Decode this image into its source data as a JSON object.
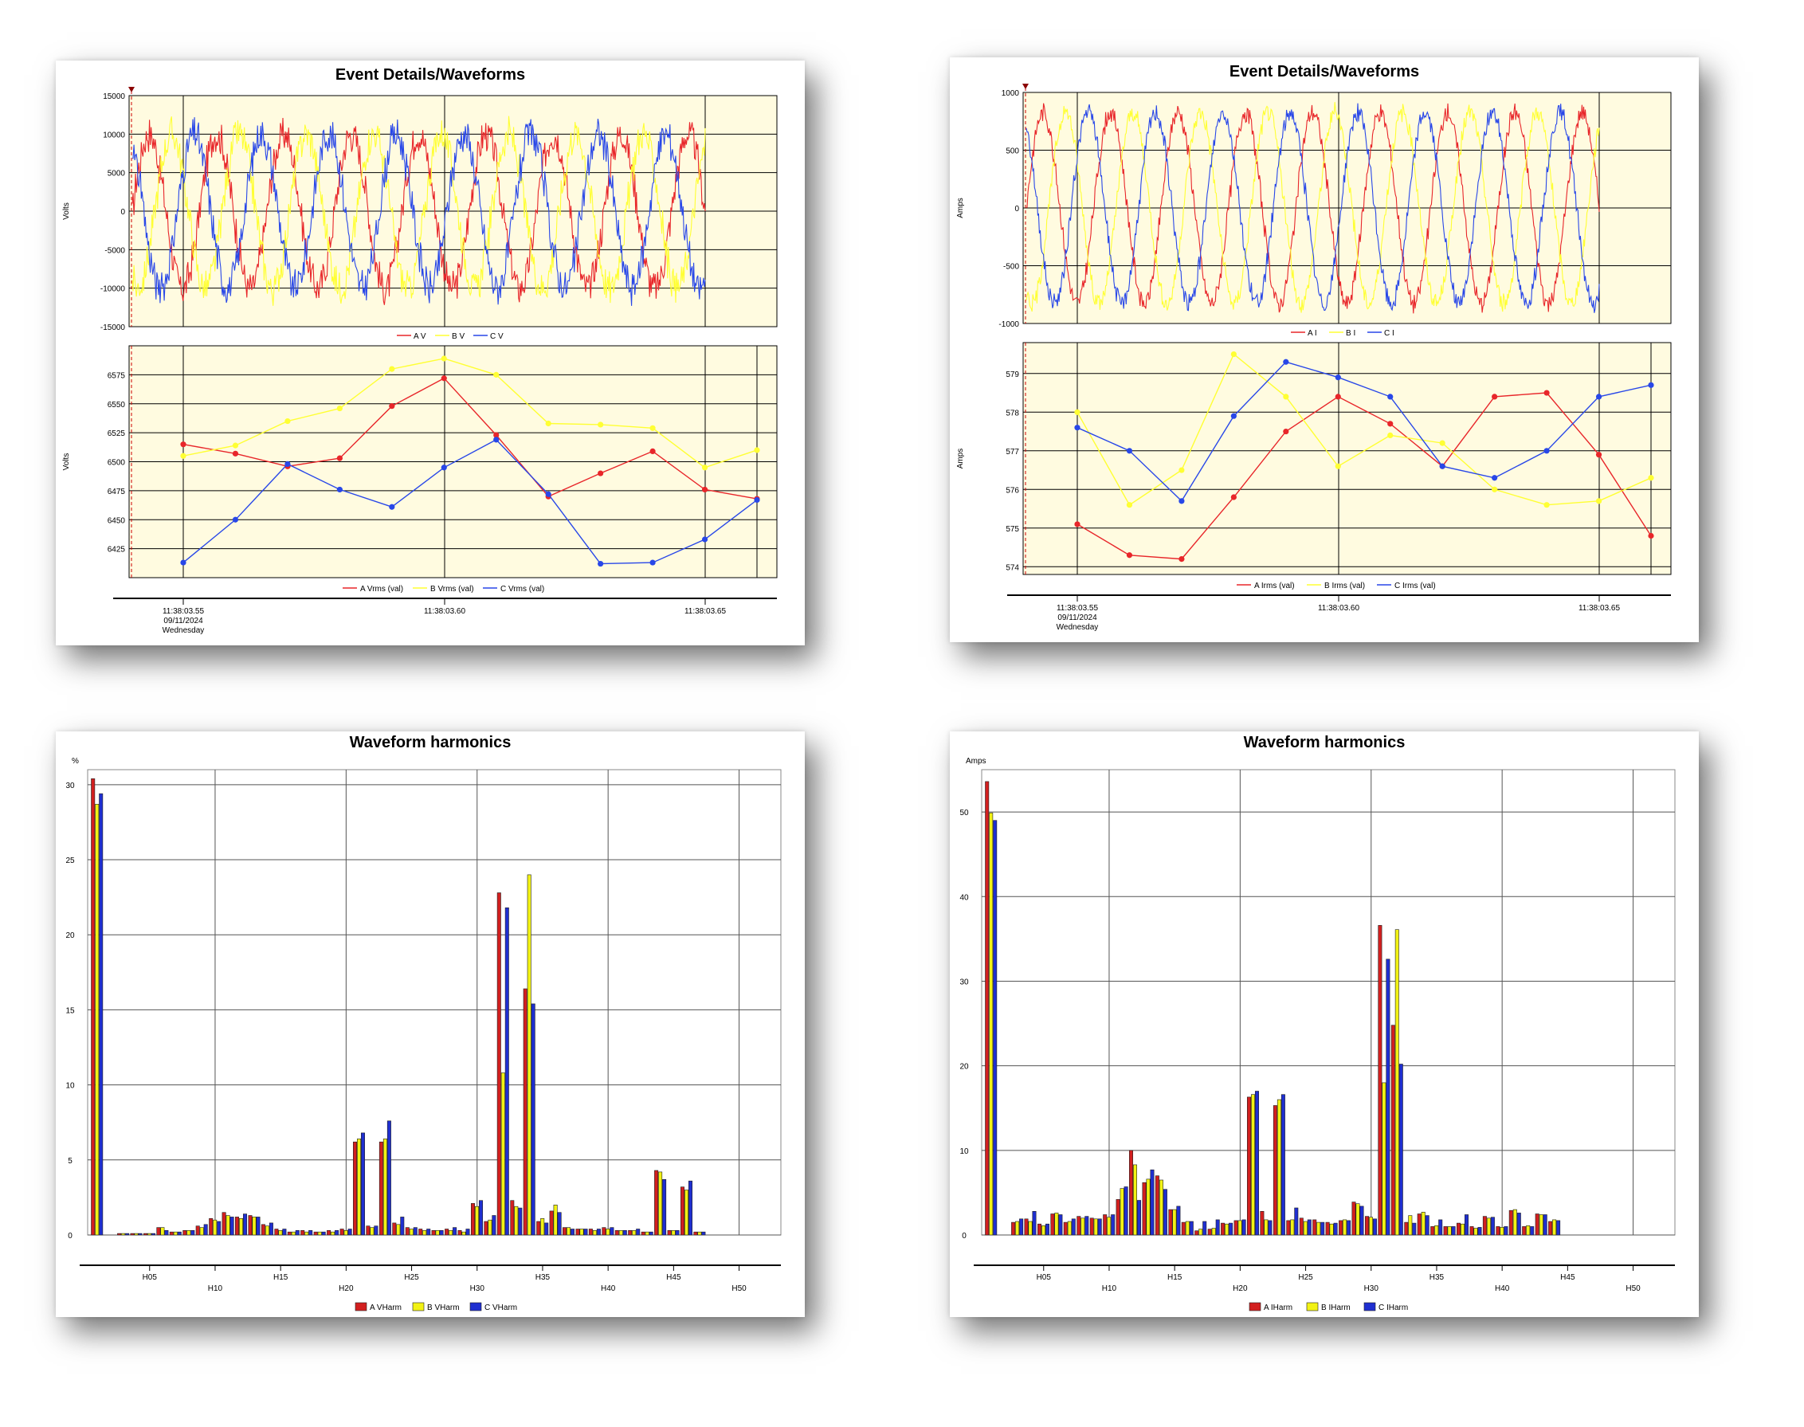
{
  "chart_data": [
    {
      "panel": "voltage",
      "type": "line",
      "title": "Event Details/Waveforms",
      "waveform": {
        "ylabel": "Volts",
        "ylim": [
          -15000,
          15000
        ],
        "yticks": [
          "15000",
          "10000",
          "5000",
          "0",
          "-5000",
          "-10000",
          "-15000"
        ],
        "amplitude": 10000,
        "noise": 2500,
        "cycles": 8.5,
        "legend": [
          "A V",
          "B V",
          "C V"
        ]
      },
      "rms": {
        "ylabel": "Volts",
        "ylim": [
          6400,
          6600
        ],
        "yticks": [
          "6575",
          "6550",
          "6525",
          "6500",
          "6475",
          "6450",
          "6425"
        ],
        "legend": [
          "A Vrms (val)",
          "B Vrms (val)",
          "C Vrms (val)"
        ],
        "series": [
          {
            "values": [
              6515,
              6507,
              6496,
              6503,
              6548,
              6572,
              6523,
              6470,
              6490,
              6509,
              6476,
              6468
            ]
          },
          {
            "values": [
              6505,
              6514,
              6535,
              6546,
              6580,
              6589,
              6575,
              6533,
              6532,
              6529,
              6495,
              6510
            ]
          },
          {
            "values": [
              6413,
              6450,
              6498,
              6476,
              6461,
              6495,
              6519,
              6472,
              6412,
              6413,
              6433,
              6467
            ]
          }
        ]
      },
      "time_labels": [
        {
          "lines": [
            "11:38:03.55",
            "09/11/2024",
            "Wednesday"
          ]
        },
        {
          "lines": [
            "11:38:03.60"
          ]
        },
        {
          "lines": [
            "11:38:03.65"
          ]
        }
      ],
      "colors": [
        "#e8262a",
        "#ffff33",
        "#2847e8"
      ]
    },
    {
      "panel": "current",
      "type": "line",
      "title": "Event Details/Waveforms",
      "waveform": {
        "ylabel": "Amps",
        "ylim": [
          -1000,
          1000
        ],
        "yticks": [
          "1000",
          "500",
          "0",
          "-500",
          "-1000"
        ],
        "amplitude": 830,
        "noise": 90,
        "cycles": 8.5,
        "legend": [
          "A I",
          "B I",
          "C I"
        ]
      },
      "rms": {
        "ylabel": "Amps",
        "ylim": [
          573.8,
          579.8
        ],
        "yticks": [
          "579",
          "578",
          "577",
          "576",
          "575",
          "574"
        ],
        "legend": [
          "A Irms (val)",
          "B Irms (val)",
          "C Irms (val)"
        ],
        "series": [
          {
            "values": [
              575.1,
              574.3,
              574.2,
              575.8,
              577.5,
              578.4,
              577.7,
              576.6,
              578.4,
              578.5,
              576.9,
              574.8
            ]
          },
          {
            "values": [
              578.0,
              575.6,
              576.5,
              579.5,
              578.4,
              576.6,
              577.4,
              577.2,
              576.0,
              575.6,
              575.7,
              576.3
            ]
          },
          {
            "values": [
              577.6,
              577.0,
              575.7,
              577.9,
              579.3,
              578.9,
              578.4,
              576.6,
              576.3,
              577.0,
              578.4,
              578.7
            ]
          }
        ]
      },
      "time_labels": [
        {
          "lines": [
            "11:38:03.55",
            "09/11/2024",
            "Wednesday"
          ]
        },
        {
          "lines": [
            "11:38:03.60"
          ]
        },
        {
          "lines": [
            "11:38:03.65"
          ]
        }
      ],
      "colors": [
        "#e8262a",
        "#ffff33",
        "#2847e8"
      ]
    },
    {
      "panel": "voltage-harmonics",
      "type": "bar",
      "title": "Waveform harmonics",
      "ylabel": "%",
      "ylim": [
        0,
        31
      ],
      "yticks": [
        "30",
        "25",
        "20",
        "15",
        "10",
        "5",
        "0"
      ],
      "xticks_upper": [
        "H05",
        "H15",
        "H25",
        "H35",
        "H45"
      ],
      "xticks_lower": [
        "H10",
        "H20",
        "H30",
        "H40",
        "H50"
      ],
      "legend": [
        "A VHarm",
        "B VHarm",
        "C VHarm"
      ],
      "series": [
        {
          "values": [
            30.4,
            0,
            0.1,
            0.1,
            0.1,
            0.5,
            0.2,
            0.3,
            0.6,
            1.1,
            1.5,
            1.2,
            1.3,
            0.7,
            0.4,
            0.2,
            0.3,
            0.2,
            0.3,
            0.4,
            6.2,
            0.6,
            6.2,
            0.8,
            0.5,
            0.4,
            0.3,
            0.4,
            0.3,
            2.1,
            0.9,
            22.8,
            2.3,
            16.4,
            0.9,
            1.6,
            0.5,
            0.4,
            0.4,
            0.5,
            0.3,
            0.3,
            0.2,
            4.3,
            0.3,
            3.2,
            0.2
          ]
        },
        {
          "values": [
            28.7,
            0,
            0.1,
            0.1,
            0.1,
            0.5,
            0.2,
            0.3,
            0.5,
            1.0,
            1.3,
            1.1,
            1.2,
            0.6,
            0.3,
            0.2,
            0.2,
            0.2,
            0.2,
            0.3,
            6.4,
            0.5,
            6.4,
            0.7,
            0.4,
            0.3,
            0.3,
            0.3,
            0.2,
            1.9,
            1.0,
            10.8,
            1.9,
            24.0,
            1.1,
            2.0,
            0.5,
            0.4,
            0.3,
            0.4,
            0.3,
            0.3,
            0.2,
            4.2,
            0.3,
            3.0,
            0.2
          ]
        },
        {
          "values": [
            29.4,
            0,
            0.1,
            0.1,
            0.1,
            0.3,
            0.2,
            0.3,
            0.7,
            0.9,
            1.2,
            1.4,
            1.2,
            0.8,
            0.4,
            0.3,
            0.3,
            0.2,
            0.3,
            0.4,
            6.8,
            0.6,
            7.6,
            1.2,
            0.5,
            0.4,
            0.3,
            0.5,
            0.4,
            2.3,
            1.3,
            21.8,
            1.8,
            15.4,
            0.8,
            1.5,
            0.4,
            0.4,
            0.4,
            0.5,
            0.3,
            0.4,
            0.2,
            3.7,
            0.3,
            3.6,
            0.2
          ]
        }
      ],
      "colors": [
        "#d21f1f",
        "#f2f214",
        "#1f2fd0"
      ]
    },
    {
      "panel": "current-harmonics",
      "type": "bar",
      "title": "Waveform harmonics",
      "ylabel": "Amps",
      "ylim": [
        0,
        55
      ],
      "yticks": [
        "50",
        "40",
        "30",
        "20",
        "10",
        "0"
      ],
      "xticks_upper": [
        "H05",
        "H15",
        "H25",
        "H35",
        "H45"
      ],
      "xticks_lower": [
        "H10",
        "H20",
        "H30",
        "H40",
        "H50"
      ],
      "legend": [
        "A IHarm",
        "B IHarm",
        "C IHarm"
      ],
      "series": [
        {
          "values": [
            53.6,
            0,
            1.5,
            1.9,
            1.3,
            2.5,
            1.5,
            2.2,
            2.0,
            2.4,
            4.2,
            10.0,
            6.2,
            7.0,
            3.0,
            1.5,
            0.5,
            0.7,
            1.4,
            1.7,
            16.3,
            2.8,
            15.3,
            1.7,
            2.0,
            1.8,
            1.5,
            1.7,
            3.9,
            2.2,
            36.6,
            24.8,
            1.5,
            2.5,
            1.0,
            1.0,
            1.4,
            1.0,
            2.2,
            1.0,
            2.9,
            1.0,
            2.5,
            1.6,
            0,
            0,
            0
          ]
        },
        {
          "values": [
            49.9,
            0,
            1.6,
            1.6,
            1.1,
            2.6,
            1.6,
            2.0,
            1.9,
            2.1,
            5.5,
            8.3,
            6.6,
            6.5,
            3.0,
            1.6,
            0.7,
            0.8,
            1.3,
            1.7,
            16.6,
            1.8,
            16.0,
            1.8,
            1.6,
            1.5,
            1.3,
            1.8,
            3.7,
            2.1,
            18.0,
            36.1,
            2.3,
            2.7,
            1.1,
            1.0,
            1.3,
            0.8,
            2.0,
            0.9,
            3.0,
            1.1,
            2.4,
            1.8,
            0,
            0,
            0
          ]
        },
        {
          "values": [
            49.0,
            0,
            1.9,
            2.8,
            1.3,
            2.4,
            1.9,
            2.2,
            1.9,
            2.4,
            5.7,
            4.1,
            7.7,
            5.4,
            3.4,
            1.6,
            1.6,
            1.8,
            1.4,
            1.8,
            17.0,
            1.7,
            16.6,
            3.2,
            1.8,
            1.5,
            1.4,
            1.7,
            3.4,
            1.9,
            32.6,
            20.2,
            1.4,
            2.3,
            1.8,
            1.0,
            2.4,
            0.9,
            2.1,
            1.0,
            2.6,
            1.0,
            2.4,
            1.7,
            0,
            0,
            0
          ]
        }
      ],
      "colors": [
        "#d21f1f",
        "#f2f214",
        "#1f2fd0"
      ]
    }
  ]
}
